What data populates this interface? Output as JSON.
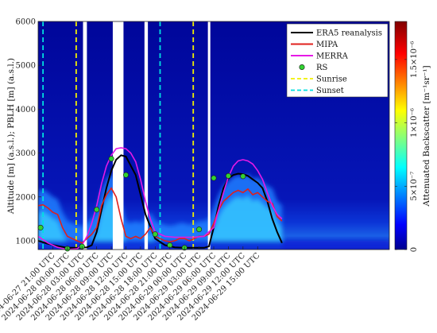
{
  "chart_data": {
    "type": "line",
    "ylabel": "Altitude [m] (a.s.l.); PBLH [m] (a.s.l.)",
    "ylim": [
      800,
      6000
    ],
    "yticks": [
      1000,
      2000,
      3000,
      4000,
      5000,
      6000
    ],
    "xlim": [
      -3,
      69
    ],
    "xticks": [
      {
        "t": 0,
        "label": "2024-06-27 21:00 UTC"
      },
      {
        "t": 3,
        "label": "2024-06-28 00:00 UTC"
      },
      {
        "t": 6,
        "label": "2024-06-28 03:00 UTC"
      },
      {
        "t": 9,
        "label": "2024-06-28 06:00 UTC"
      },
      {
        "t": 12,
        "label": "2024-06-28 09:00 UTC"
      },
      {
        "t": 15,
        "label": "2024-06-28 12:00 UTC"
      },
      {
        "t": 18,
        "label": "2024-06-28 15:00 UTC"
      },
      {
        "t": 21,
        "label": "2024-06-28 18:00 UTC"
      },
      {
        "t": 24,
        "label": "2024-06-28 21:00 UTC"
      },
      {
        "t": 27,
        "label": "2024-06-29 00:00 UTC"
      },
      {
        "t": 30,
        "label": "2024-06-29 03:00 UTC"
      },
      {
        "t": 33,
        "label": "2024-06-29 06:00 UTC"
      },
      {
        "t": 36,
        "label": "2024-06-29 09:00 UTC"
      },
      {
        "t": 39,
        "label": "2024-06-29 12:00 UTC"
      },
      {
        "t": 42,
        "label": "2024-06-29 15:00 UTC"
      }
    ],
    "series": [
      {
        "name": "ERA5 reanalysis",
        "color": "#000000",
        "x": [
          -3,
          -1,
          1,
          3,
          5,
          7,
          8,
          9,
          10,
          11,
          12,
          13,
          14,
          15,
          17,
          19,
          21,
          23,
          25,
          27,
          29,
          31,
          32,
          33,
          34,
          35,
          36,
          37,
          38,
          39,
          40,
          41,
          42,
          43,
          44,
          45,
          46,
          47
        ],
        "y": [
          1000,
          930,
          880,
          840,
          840,
          850,
          900,
          1200,
          1700,
          2200,
          2600,
          2850,
          2950,
          2920,
          2500,
          1600,
          1050,
          900,
          850,
          840,
          840,
          840,
          870,
          1300,
          1800,
          2200,
          2420,
          2500,
          2530,
          2520,
          2480,
          2400,
          2320,
          2200,
          1900,
          1500,
          1200,
          950
        ]
      },
      {
        "name": "MIPA",
        "color": "#e0201c",
        "x": [
          -3,
          -2,
          -1,
          0,
          1,
          2,
          3,
          4,
          5,
          6,
          7,
          8,
          9,
          10,
          11,
          12,
          13,
          14,
          15,
          16,
          17,
          18,
          19,
          20,
          21,
          22,
          23,
          24,
          25,
          26,
          27,
          28,
          29,
          30,
          31,
          32,
          33,
          34,
          35,
          36,
          37,
          38,
          39,
          40,
          41,
          42,
          43,
          44,
          45,
          46,
          47
        ],
        "y": [
          1800,
          1820,
          1750,
          1650,
          1600,
          1300,
          1100,
          1050,
          1000,
          950,
          1050,
          1150,
          1300,
          1800,
          2050,
          2200,
          2000,
          1500,
          1100,
          1050,
          1100,
          1050,
          1150,
          1300,
          1100,
          1050,
          1000,
          980,
          1000,
          1050,
          1050,
          1000,
          1050,
          1100,
          1100,
          1150,
          1400,
          1700,
          1900,
          2000,
          2100,
          2150,
          2100,
          2180,
          2050,
          2100,
          2000,
          1900,
          1850,
          1550,
          1450
        ]
      },
      {
        "name": "MERRA",
        "color": "#e619e6",
        "x": [
          -3,
          -1,
          1,
          3,
          5,
          6,
          7,
          8,
          9,
          10,
          11,
          12,
          13,
          14,
          15,
          16,
          17,
          18,
          19,
          20,
          21,
          23,
          25,
          27,
          29,
          31,
          33,
          34,
          35,
          36,
          37,
          38,
          39,
          40,
          41,
          42,
          43,
          44,
          45,
          46,
          47
        ],
        "y": [
          1100,
          950,
          850,
          800,
          820,
          900,
          1100,
          1400,
          1800,
          2300,
          2700,
          2950,
          3100,
          3120,
          3100,
          3000,
          2800,
          2400,
          1900,
          1500,
          1200,
          1100,
          1080,
          1080,
          1080,
          1100,
          1300,
          1700,
          2100,
          2450,
          2700,
          2820,
          2850,
          2820,
          2750,
          2600,
          2400,
          2100,
          1800,
          1600,
          1500
        ]
      },
      {
        "name": "RS",
        "color": "#32d232",
        "style": "marker",
        "x": [
          -2.5,
          3,
          6,
          9,
          12,
          15,
          21,
          24,
          27,
          30,
          33,
          36,
          39
        ],
        "y": [
          1300,
          820,
          870,
          1710,
          2870,
          2500,
          1150,
          900,
          840,
          1260,
          2430,
          2480,
          2470
        ]
      }
    ],
    "sunrise_t": [
      4.8,
      28.8
    ],
    "sunset_t": [
      -2.0,
      22.0
    ],
    "sunrise_color": "#f0f000",
    "sunset_color": "#00e0e0",
    "data_gaps_t": [
      [
        6.2,
        7.0
      ],
      [
        12.3,
        14.5
      ],
      [
        18.8,
        19.5
      ],
      [
        31.8,
        32.3
      ]
    ],
    "legend": {
      "position": "top-right",
      "entries": [
        "ERA5 reanalysis",
        "MIPA",
        "MERRA",
        "RS",
        "Sunrise",
        "Sunset"
      ]
    },
    "colorbar": {
      "label": "Attenuated Backscatter [m⁻¹sr⁻¹]",
      "colormap": "jet",
      "range": [
        0,
        1.8e-06
      ],
      "ticks": [
        {
          "v": 0,
          "label": "0"
        },
        {
          "v": 5e-07,
          "label": "5×10⁻⁷"
        },
        {
          "v": 1e-06,
          "label": "1×10⁻⁶"
        },
        {
          "v": 1.5e-06,
          "label": "1.5×10⁻⁶"
        }
      ]
    }
  }
}
